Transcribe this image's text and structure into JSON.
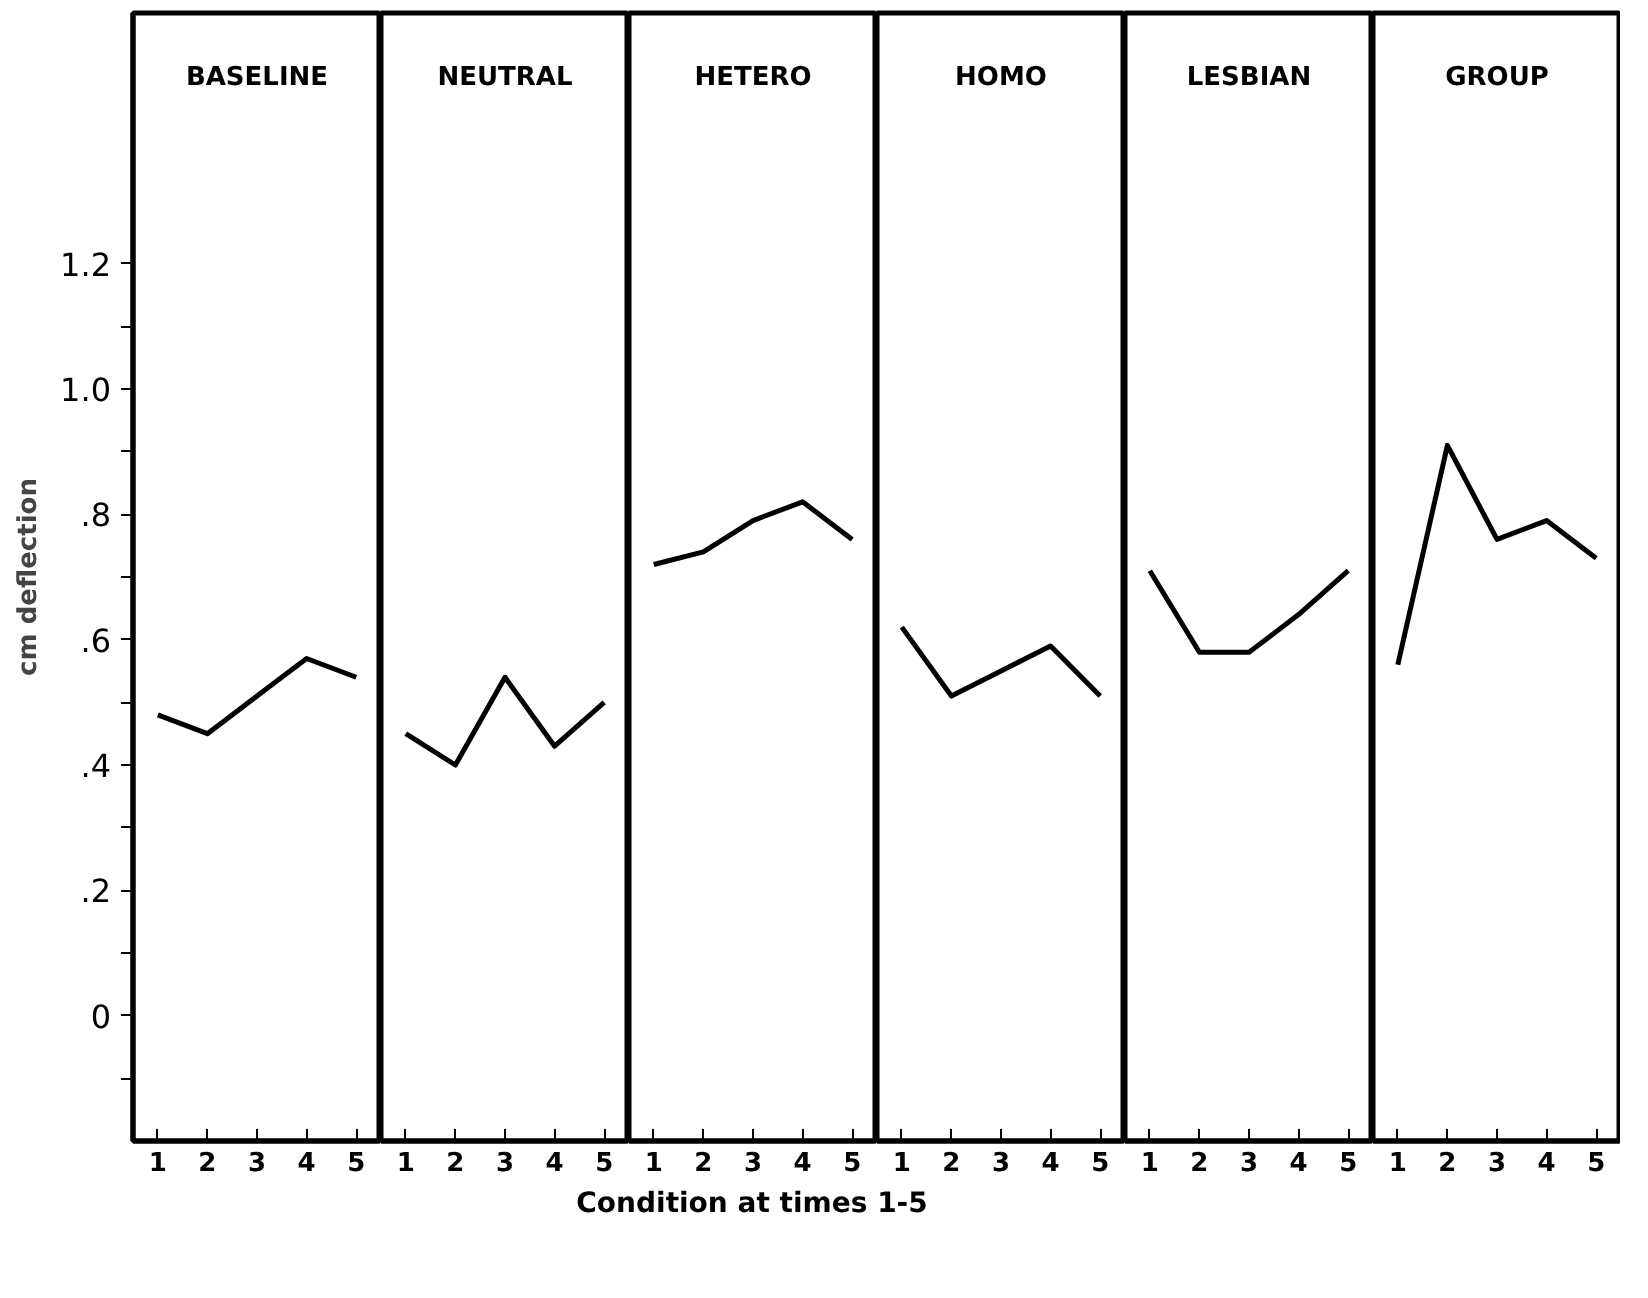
{
  "chart_data": [
    {
      "type": "line",
      "title": "BASELINE",
      "ylabel": "cm deflection",
      "categories": [
        "1",
        "2",
        "3",
        "4",
        "5"
      ],
      "series": [
        {
          "color": "#000000",
          "values": [
            0.48,
            0.45,
            0.51,
            0.57,
            0.54
          ]
        }
      ],
      "ylim": [
        -0.2,
        1.6
      ],
      "yticks": [
        {
          "value": -0.1,
          "label": null
        },
        0,
        {
          "value": 0.1,
          "label": null
        },
        {
          "value": 0.2,
          "label": ".2"
        },
        {
          "value": 0.3,
          "label": null
        },
        {
          "value": 0.4,
          "label": ".4"
        },
        {
          "value": 0.5,
          "label": null
        },
        {
          "value": 0.6,
          "label": ".6"
        },
        {
          "value": 0.7,
          "label": null
        },
        {
          "value": 0.8,
          "label": ".8"
        },
        {
          "value": 0.9,
          "label": null
        },
        {
          "value": 1.0,
          "label": "1.0"
        },
        {
          "value": 1.1,
          "label": null
        },
        1.2
      ],
      "grid": false
    },
    {
      "type": "line",
      "title": "NEUTRAL",
      "categories": [
        "1",
        "2",
        "3",
        "4",
        "5"
      ],
      "series": [
        {
          "color": "#000000",
          "values": [
            0.45,
            0.4,
            0.54,
            0.43,
            0.5
          ]
        }
      ],
      "ylim": [
        -0.2,
        1.6
      ],
      "tick_labels": "x",
      "grid": false
    },
    {
      "type": "line",
      "title": "HETERO",
      "xlabel": "Condition at times 1-5",
      "categories": [
        "1",
        "2",
        "3",
        "4",
        "5"
      ],
      "series": [
        {
          "color": "#000000",
          "values": [
            0.72,
            0.74,
            0.79,
            0.82,
            0.76
          ]
        }
      ],
      "ylim": [
        -0.2,
        1.6
      ],
      "tick_labels": "x",
      "grid": false
    },
    {
      "type": "line",
      "title": "HOMO",
      "categories": [
        "1",
        "2",
        "3",
        "4",
        "5"
      ],
      "series": [
        {
          "color": "#000000",
          "values": [
            0.62,
            0.51,
            0.55,
            0.59,
            0.51
          ]
        }
      ],
      "ylim": [
        -0.2,
        1.6
      ],
      "tick_labels": "x",
      "grid": false
    },
    {
      "type": "line",
      "title": "LESBIAN",
      "categories": [
        "1",
        "2",
        "3",
        "4",
        "5"
      ],
      "series": [
        {
          "color": "#000000",
          "values": [
            0.71,
            0.58,
            0.58,
            0.64,
            0.71
          ]
        }
      ],
      "ylim": [
        -0.2,
        1.6
      ],
      "tick_labels": "x",
      "grid": false
    },
    {
      "type": "line",
      "title": "GROUP",
      "categories": [
        "1",
        "2",
        "3",
        "4",
        "5"
      ],
      "series": [
        {
          "color": "#000000",
          "values": [
            0.56,
            0.91,
            0.76,
            0.79,
            0.73
          ]
        }
      ],
      "ylim": [
        -0.2,
        1.6
      ],
      "tick_labels": "x",
      "grid": false
    }
  ]
}
